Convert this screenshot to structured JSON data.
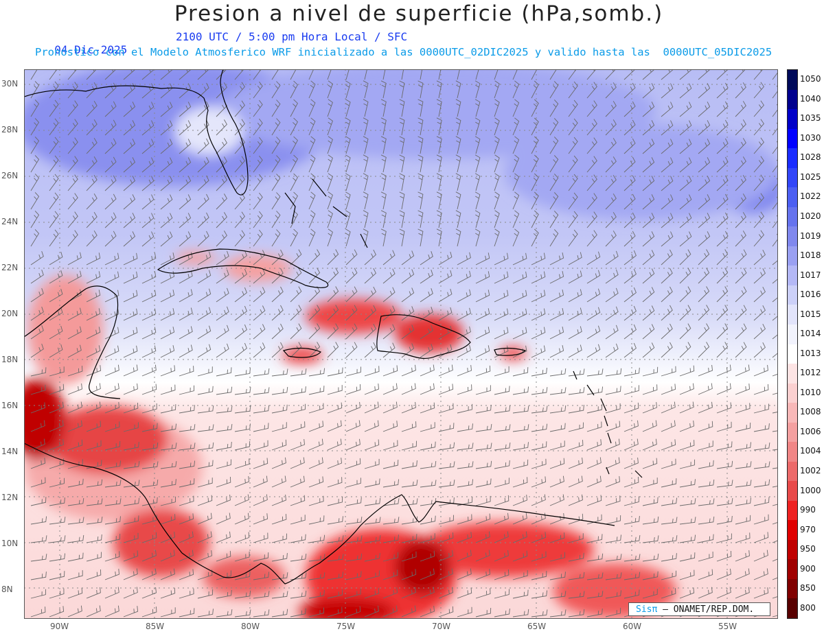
{
  "header": {
    "title": "Presion a nivel de superficie (hPa,somb.)",
    "date": "04-Dic-2025",
    "time": "2100 UTC / 5:00 pm Hora Local / SFC",
    "model_info": "Pronostico con el Modelo Atmosferico WRF inicializado a las 0000UTC_02DIC2025 y valido hasta las  0000UTC_05DIC2025"
  },
  "map": {
    "lat_labels": [
      "30N",
      "28N",
      "26N",
      "24N",
      "22N",
      "20N",
      "18N",
      "16N",
      "14N",
      "12N",
      "10N",
      "8N"
    ],
    "lon_labels": [
      "90W",
      "85W",
      "80W",
      "75W",
      "70W",
      "65W",
      "60W",
      "55W"
    ],
    "lat_values": [
      30,
      28,
      26,
      24,
      22,
      20,
      18,
      16,
      14,
      12,
      10,
      8
    ],
    "lon_values": [
      -90,
      -85,
      -80,
      -75,
      -70,
      -65,
      -60,
      -55
    ]
  },
  "colorbar": {
    "levels": [
      "1050",
      "1040",
      "1035",
      "1030",
      "1028",
      "1025",
      "1022",
      "1020",
      "1019",
      "1018",
      "1017",
      "1016",
      "1015",
      "1014",
      "1013",
      "1012",
      "1010",
      "1008",
      "1006",
      "1004",
      "1002",
      "1000",
      "990",
      "970",
      "950",
      "900",
      "850",
      "800"
    ],
    "colors": [
      "#000a5a",
      "#00008e",
      "#0000c8",
      "#0000ff",
      "#1a2cff",
      "#3246f8",
      "#4c5ff2",
      "#6673ee",
      "#8088ee",
      "#9aa0f2",
      "#b4b8f6",
      "#ccd0f8",
      "#e2e4fb",
      "#f2f3fd",
      "#ffffff",
      "#fde4e4",
      "#fbd0d0",
      "#f8b8b8",
      "#f4a0a0",
      "#f08686",
      "#ec6a6a",
      "#e84a4a",
      "#ee2222",
      "#e00000",
      "#c00000",
      "#a00000",
      "#800000",
      "#580000"
    ]
  },
  "credit": {
    "brand": "Sisπ",
    "text": "– ONAMET/REP.DOM."
  }
}
